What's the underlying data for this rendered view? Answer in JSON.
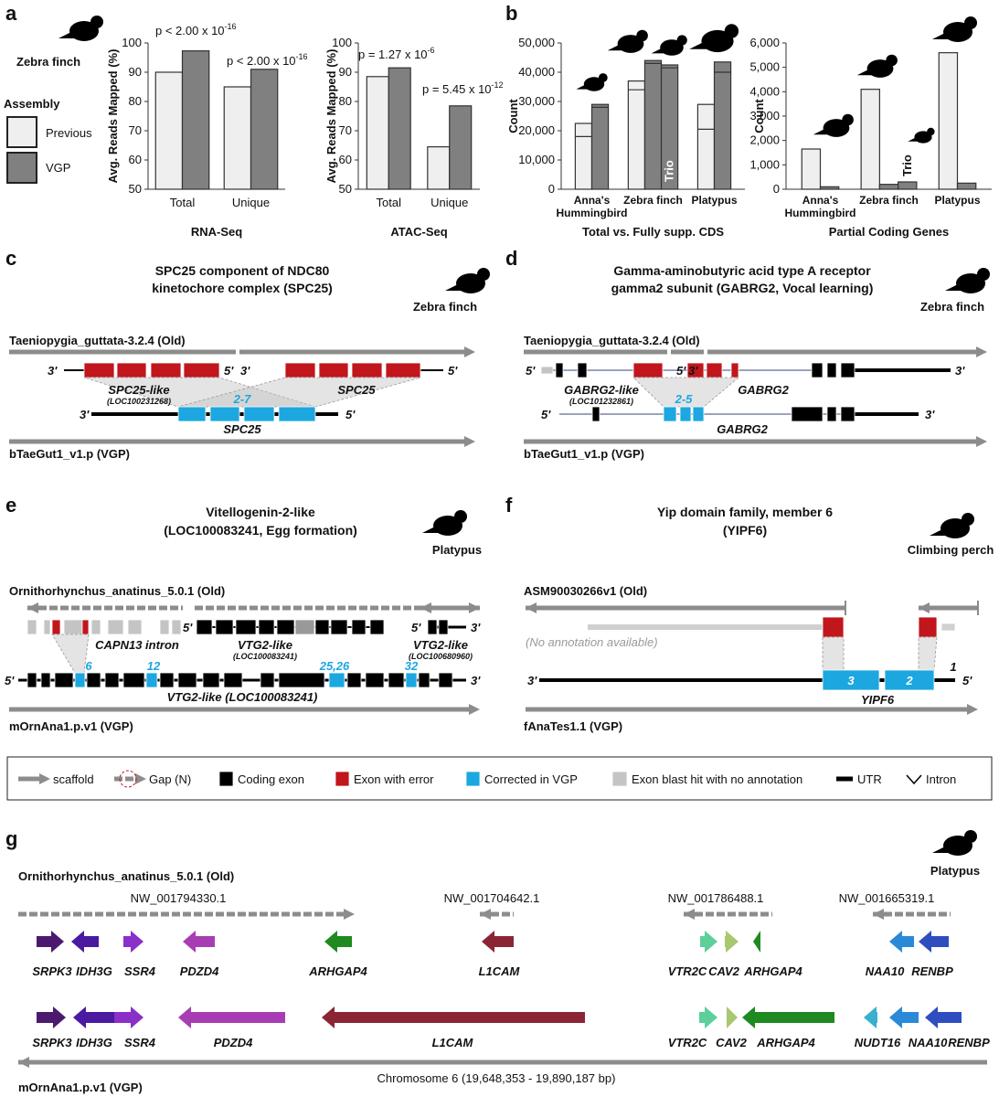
{
  "panel_labels": [
    "a",
    "b",
    "c",
    "d",
    "e",
    "f",
    "g"
  ],
  "chart_data": [
    {
      "type": "bar",
      "species": "Zebra finch",
      "legend_title": "Assembly",
      "x_label": "RNA-Seq",
      "y_label": "Avg. Reads Mapped (%)",
      "categories": [
        "Total",
        "Unique"
      ],
      "series": [
        {
          "name": "Previous",
          "color": "#efefef",
          "values": [
            90,
            85
          ]
        },
        {
          "name": "VGP",
          "color": "#808080",
          "values": [
            97.3,
            91
          ]
        }
      ],
      "ylim": [
        50,
        100
      ],
      "yticks": [
        50,
        60,
        70,
        80,
        90,
        100
      ],
      "annotations": [
        {
          "text": "p < 2.00 x 10",
          "exponent": "-16"
        },
        {
          "text": "p < 2.00 x 10",
          "exponent": "-16"
        }
      ]
    },
    {
      "type": "bar",
      "x_label": "ATAC-Seq",
      "y_label": "Avg. Reads Mapped (%)",
      "categories": [
        "Total",
        "Unique"
      ],
      "series": [
        {
          "color": "#efefef",
          "values": [
            88.5,
            64.5
          ]
        },
        {
          "color": "#808080",
          "values": [
            91.5,
            78.5
          ]
        }
      ],
      "ylim": [
        50,
        100
      ],
      "yticks": [
        50,
        60,
        70,
        80,
        90,
        100
      ],
      "annotations": [
        {
          "text": "p = 1.27 x 10",
          "exponent": "-6"
        },
        {
          "text": "p = 5.45 x 10",
          "exponent": "-12"
        }
      ]
    },
    {
      "type": "bar",
      "x_label": "Total vs. Fully supp. CDS",
      "y_label": "Count",
      "categories": [
        "Anna's Hummingbird",
        "Zebra finch",
        "Platypus"
      ],
      "series": [
        {
          "color": "#efefef",
          "values": [
            22500,
            37000,
            29000
          ],
          "fully_supported": [
            18000,
            34000,
            20500
          ]
        },
        {
          "color": "#808080",
          "values": [
            29000,
            44000,
            43500
          ],
          "fully_supported": [
            28000,
            43000,
            40000
          ]
        },
        {
          "label": "Trio",
          "color": "#808080",
          "values": [
            null,
            42500,
            null
          ],
          "fully_supported": [
            null,
            41500,
            null
          ]
        }
      ],
      "ylim": [
        0,
        50000
      ],
      "yticks": [
        0,
        {
          "value": 10000,
          "label": "10,000"
        },
        {
          "value": 20000,
          "label": "20,000"
        },
        {
          "value": 30000,
          "label": "30,000"
        },
        {
          "value": 40000,
          "label": "40,000"
        },
        {
          "value": 50000,
          "label": "50,000"
        }
      ]
    },
    {
      "type": "bar",
      "x_label": "Partial Coding Genes",
      "y_label": "Count",
      "categories": [
        "Anna's Hummingbird",
        "Zebra finch",
        "Platypus"
      ],
      "series": [
        {
          "color": "#efefef",
          "values": [
            1650,
            4100,
            5600
          ]
        },
        {
          "color": "#808080",
          "values": [
            100,
            200,
            250
          ]
        },
        {
          "label": "Trio",
          "color": "#808080",
          "values": [
            null,
            300,
            null
          ]
        }
      ],
      "ylim": [
        0,
        6000
      ],
      "yticks": [
        0,
        {
          "value": 1000,
          "label": "1,000"
        },
        {
          "value": 2000,
          "label": "2,000"
        },
        {
          "value": 3000,
          "label": "3,000"
        },
        {
          "value": 4000,
          "label": "4,000"
        },
        {
          "value": 5000,
          "label": "5,000"
        },
        {
          "value": 6000,
          "label": "6,000"
        }
      ]
    }
  ],
  "panel_c": {
    "title": [
      "SPC25 component of NDC80",
      "kinetochore complex (SPC25)"
    ],
    "species": "Zebra finch",
    "old": "Taeniopygia_guttata-3.2.4 (Old)",
    "new": "bTaeGut1_v1.p (VGP)",
    "ends": [
      "3'",
      "5'",
      "3'",
      "5'",
      "3'",
      "5'"
    ],
    "labels": [
      "SPC25-like",
      "(LOC100231268)",
      "SPC25",
      "2-7",
      "SPC25"
    ]
  },
  "panel_d": {
    "title": [
      "Gamma-aminobutyric acid type A receptor",
      "gamma2 subunit (GABRG2, Vocal learning)"
    ],
    "species": "Zebra finch",
    "old": "Taeniopygia_guttata-3.2.4 (Old)",
    "new": "bTaeGut1_v1.p (VGP)",
    "ends": [
      "5'",
      "3'",
      "5'",
      "3'",
      "5'",
      "3'"
    ],
    "labels": [
      "GABRG2-like",
      "(LOC101232861)",
      "GABRG2",
      "2-5",
      "GABRG2"
    ]
  },
  "panel_e": {
    "title": [
      "Vitellogenin-2-like",
      "(LOC100083241, Egg formation)"
    ],
    "species": "Platypus",
    "old": "Ornithorhynchus_anatinus_5.0.1 (Old)",
    "new": "mOrnAna1.p.v1 (VGP)",
    "ends": [
      "5'",
      "5'",
      "3'",
      "5'",
      "3'"
    ],
    "labels": [
      "CAPN13 intron",
      "VTG2-like",
      "(LOC100083241)",
      "VTG2-like",
      "(LOC100680960)",
      "VTG2-like (LOC100083241)"
    ],
    "corrected": [
      "6",
      "12",
      "25,26",
      "32"
    ]
  },
  "panel_f": {
    "title": [
      "Yip domain family, member 6",
      "(YIPF6)"
    ],
    "species": "Climbing perch",
    "old": "ASM90030266v1 (Old)",
    "new": "fAnaTes1.1 (VGP)",
    "note": "(No annotation available)",
    "ends": [
      "3'",
      "5'"
    ],
    "exons": [
      "3",
      "2",
      "1"
    ],
    "gene": "YIPF6"
  },
  "legend": [
    "scaffold",
    "Gap (N)",
    "Coding exon",
    "Exon with error",
    "Corrected in VGP",
    "Exon blast hit with no annotation",
    "UTR",
    "Intron"
  ],
  "panel_g": {
    "species": "Platypus",
    "old": "Ornithorhynchus_anatinus_5.0.1 (Old)",
    "new": "mOrnAna1.p.v1 (VGP)",
    "scaffolds": [
      "NW_001794330.1",
      "NW_001704642.1",
      "NW_001786488.1",
      "NW_001665319.1"
    ],
    "old_genes": [
      "SRPK3",
      "IDH3G",
      "SSR4",
      "PDZD4",
      "ARHGAP4",
      "L1CAM",
      "VTR2C",
      "CAV2",
      "ARHGAP4",
      "NAA10",
      "RENBP"
    ],
    "new_genes": [
      "SRPK3",
      "IDH3G",
      "SSR4",
      "PDZD4",
      "L1CAM",
      "VTR2C",
      "CAV2",
      "ARHGAP4",
      "NUDT16",
      "NAA10",
      "RENBP"
    ],
    "chromosome": "Chromosome 6 (19,648,353 - 19,890,187 bp)"
  }
}
